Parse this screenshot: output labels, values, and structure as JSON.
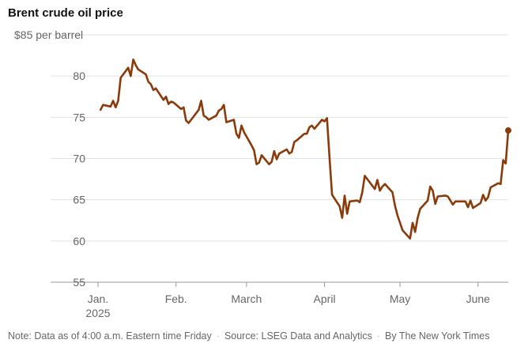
{
  "chart_data": {
    "type": "line",
    "title": "Brent crude oil price",
    "y_top_label": "$85 per barrel",
    "ylim": [
      55,
      85
    ],
    "yticks": [
      85,
      80,
      75,
      70,
      65,
      60,
      55
    ],
    "ytick_labels": [
      "",
      "80",
      "75",
      "70",
      "65",
      "60",
      "55"
    ],
    "xlim": [
      "2025-01-01",
      "2025-06-13"
    ],
    "xticks": [
      {
        "date": "2025-01-01",
        "label": "Jan.",
        "sub": "2025"
      },
      {
        "date": "2025-02-01",
        "label": "Feb.",
        "sub": ""
      },
      {
        "date": "2025-03-01",
        "label": "March",
        "sub": ""
      },
      {
        "date": "2025-04-01",
        "label": "April",
        "sub": ""
      },
      {
        "date": "2025-05-01",
        "label": "May",
        "sub": ""
      },
      {
        "date": "2025-06-01",
        "label": "June",
        "sub": ""
      }
    ],
    "grid": true,
    "series": [
      {
        "color": "#8B3A0A",
        "points": [
          [
            "2025-01-02",
            75.9
          ],
          [
            "2025-01-03",
            76.5
          ],
          [
            "2025-01-06",
            76.3
          ],
          [
            "2025-01-07",
            77.0
          ],
          [
            "2025-01-08",
            76.2
          ],
          [
            "2025-01-09",
            77.0
          ],
          [
            "2025-01-10",
            79.8
          ],
          [
            "2025-01-13",
            81.0
          ],
          [
            "2025-01-14",
            80.0
          ],
          [
            "2025-01-15",
            82.0
          ],
          [
            "2025-01-16",
            81.3
          ],
          [
            "2025-01-17",
            80.8
          ],
          [
            "2025-01-20",
            80.2
          ],
          [
            "2025-01-21",
            79.3
          ],
          [
            "2025-01-22",
            79.0
          ],
          [
            "2025-01-23",
            78.3
          ],
          [
            "2025-01-24",
            78.5
          ],
          [
            "2025-01-27",
            77.1
          ],
          [
            "2025-01-28",
            77.5
          ],
          [
            "2025-01-29",
            76.6
          ],
          [
            "2025-01-30",
            76.9
          ],
          [
            "2025-01-31",
            76.8
          ],
          [
            "2025-02-03",
            76.0
          ],
          [
            "2025-02-04",
            76.2
          ],
          [
            "2025-02-05",
            74.6
          ],
          [
            "2025-02-06",
            74.3
          ],
          [
            "2025-02-07",
            74.7
          ],
          [
            "2025-02-10",
            75.9
          ],
          [
            "2025-02-11",
            77.0
          ],
          [
            "2025-02-12",
            75.2
          ],
          [
            "2025-02-13",
            75.0
          ],
          [
            "2025-02-14",
            74.7
          ],
          [
            "2025-02-17",
            75.2
          ],
          [
            "2025-02-18",
            75.8
          ],
          [
            "2025-02-19",
            76.0
          ],
          [
            "2025-02-20",
            76.5
          ],
          [
            "2025-02-21",
            74.4
          ],
          [
            "2025-02-24",
            74.7
          ],
          [
            "2025-02-25",
            73.0
          ],
          [
            "2025-02-26",
            72.5
          ],
          [
            "2025-02-27",
            74.0
          ],
          [
            "2025-02-28",
            73.2
          ],
          [
            "2025-03-03",
            71.6
          ],
          [
            "2025-03-04",
            71.0
          ],
          [
            "2025-03-05",
            69.3
          ],
          [
            "2025-03-06",
            69.5
          ],
          [
            "2025-03-07",
            70.4
          ],
          [
            "2025-03-10",
            69.3
          ],
          [
            "2025-03-11",
            69.6
          ],
          [
            "2025-03-12",
            70.9
          ],
          [
            "2025-03-13",
            69.9
          ],
          [
            "2025-03-14",
            70.6
          ],
          [
            "2025-03-17",
            71.1
          ],
          [
            "2025-03-18",
            70.6
          ],
          [
            "2025-03-19",
            70.8
          ],
          [
            "2025-03-20",
            72.0
          ],
          [
            "2025-03-21",
            72.2
          ],
          [
            "2025-03-24",
            73.0
          ],
          [
            "2025-03-25",
            73.0
          ],
          [
            "2025-03-26",
            73.8
          ],
          [
            "2025-03-27",
            74.0
          ],
          [
            "2025-03-28",
            73.6
          ],
          [
            "2025-03-31",
            74.7
          ],
          [
            "2025-04-01",
            74.5
          ],
          [
            "2025-04-02",
            74.9
          ],
          [
            "2025-04-03",
            70.1
          ],
          [
            "2025-04-04",
            65.6
          ],
          [
            "2025-04-07",
            64.2
          ],
          [
            "2025-04-08",
            62.8
          ],
          [
            "2025-04-09",
            65.5
          ],
          [
            "2025-04-10",
            63.3
          ],
          [
            "2025-04-11",
            64.8
          ],
          [
            "2025-04-14",
            64.9
          ],
          [
            "2025-04-15",
            64.7
          ],
          [
            "2025-04-16",
            65.9
          ],
          [
            "2025-04-17",
            67.9
          ],
          [
            "2025-04-21",
            66.3
          ],
          [
            "2025-04-22",
            67.4
          ],
          [
            "2025-04-23",
            66.1
          ],
          [
            "2025-04-24",
            66.6
          ],
          [
            "2025-04-25",
            66.9
          ],
          [
            "2025-04-28",
            65.9
          ],
          [
            "2025-04-29",
            64.3
          ],
          [
            "2025-04-30",
            63.1
          ],
          [
            "2025-05-02",
            61.3
          ],
          [
            "2025-05-05",
            60.3
          ],
          [
            "2025-05-06",
            62.2
          ],
          [
            "2025-05-07",
            61.1
          ],
          [
            "2025-05-08",
            62.8
          ],
          [
            "2025-05-09",
            63.9
          ],
          [
            "2025-05-12",
            64.9
          ],
          [
            "2025-05-13",
            66.6
          ],
          [
            "2025-05-14",
            66.1
          ],
          [
            "2025-05-15",
            64.5
          ],
          [
            "2025-05-16",
            65.4
          ],
          [
            "2025-05-19",
            65.5
          ],
          [
            "2025-05-20",
            65.4
          ],
          [
            "2025-05-21",
            64.9
          ],
          [
            "2025-05-22",
            64.4
          ],
          [
            "2025-05-23",
            64.8
          ],
          [
            "2025-05-27",
            64.8
          ],
          [
            "2025-05-28",
            64.1
          ],
          [
            "2025-05-29",
            64.9
          ],
          [
            "2025-05-30",
            64.0
          ],
          [
            "2025-06-02",
            64.6
          ],
          [
            "2025-06-03",
            65.6
          ],
          [
            "2025-06-04",
            64.9
          ],
          [
            "2025-06-05",
            65.3
          ],
          [
            "2025-06-06",
            66.5
          ],
          [
            "2025-06-09",
            67.0
          ],
          [
            "2025-06-10",
            66.9
          ],
          [
            "2025-06-11",
            69.8
          ],
          [
            "2025-06-12",
            69.4
          ],
          [
            "2025-06-13",
            73.4
          ]
        ]
      }
    ]
  },
  "note": {
    "text1": "Note: Data as of 4:00 a.m. Eastern time Friday",
    "text2": "Source: LSEG Data and Analytics",
    "text3": "By The New York Times",
    "separator": "·"
  }
}
